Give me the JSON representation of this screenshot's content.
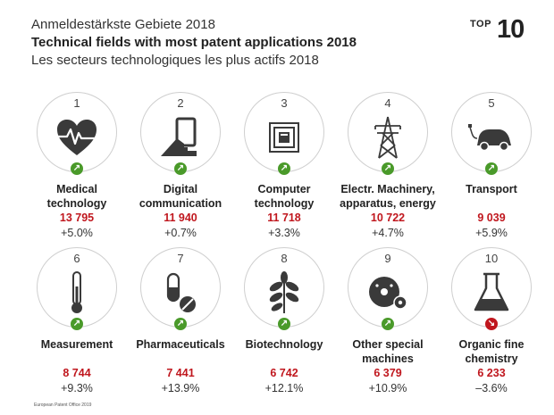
{
  "header": {
    "title_de": "Anmeldestärkste Gebiete 2018",
    "title_en": "Technical fields with most patent applications 2018",
    "title_fr": "Les secteurs technologiques les plus actifs 2018"
  },
  "badge": {
    "top": "TOP",
    "num": "10"
  },
  "colors": {
    "up": "#4a9a2a",
    "down": "#c0171e",
    "value": "#c0171e",
    "icon": "#3a3a3a"
  },
  "items": [
    {
      "rank": "1",
      "label_l1": "Medical",
      "label_l2": "technology",
      "value": "13 795",
      "change": "+5.0%",
      "trend": "up",
      "icon": "heart-pulse-icon"
    },
    {
      "rank": "2",
      "label_l1": "Digital",
      "label_l2": "communication",
      "value": "11 940",
      "change": "+0.7%",
      "trend": "up",
      "icon": "tablet-hand-icon"
    },
    {
      "rank": "3",
      "label_l1": "Computer",
      "label_l2": "technology",
      "value": "11 718",
      "change": "+3.3%",
      "trend": "up",
      "icon": "chip-icon"
    },
    {
      "rank": "4",
      "label_l1": "Electr. Machinery,",
      "label_l2": "apparatus, energy",
      "value": "10 722",
      "change": "+4.7%",
      "trend": "up",
      "icon": "power-pylon-icon"
    },
    {
      "rank": "5",
      "label_l1": "Transport",
      "label_l2": "",
      "value": "9 039",
      "change": "+5.9%",
      "trend": "up",
      "icon": "electric-car-icon"
    },
    {
      "rank": "6",
      "label_l1": "Measurement",
      "label_l2": "",
      "value": "8 744",
      "change": "+9.3%",
      "trend": "up",
      "icon": "thermometer-icon"
    },
    {
      "rank": "7",
      "label_l1": "Pharmaceuticals",
      "label_l2": "",
      "value": "7 441",
      "change": "+13.9%",
      "trend": "up",
      "icon": "pills-icon"
    },
    {
      "rank": "8",
      "label_l1": "Biotechnology",
      "label_l2": "",
      "value": "6 742",
      "change": "+12.1%",
      "trend": "up",
      "icon": "leaf-icon"
    },
    {
      "rank": "9",
      "label_l1": "Other special",
      "label_l2": "machines",
      "value": "6 379",
      "change": "+10.9%",
      "trend": "up",
      "icon": "saw-blade-icon"
    },
    {
      "rank": "10",
      "label_l1": "Organic fine",
      "label_l2": "chemistry",
      "value": "6 233",
      "change": "–3.6%",
      "trend": "down",
      "icon": "flask-icon"
    }
  ],
  "footer": "European Patent Office 2019"
}
